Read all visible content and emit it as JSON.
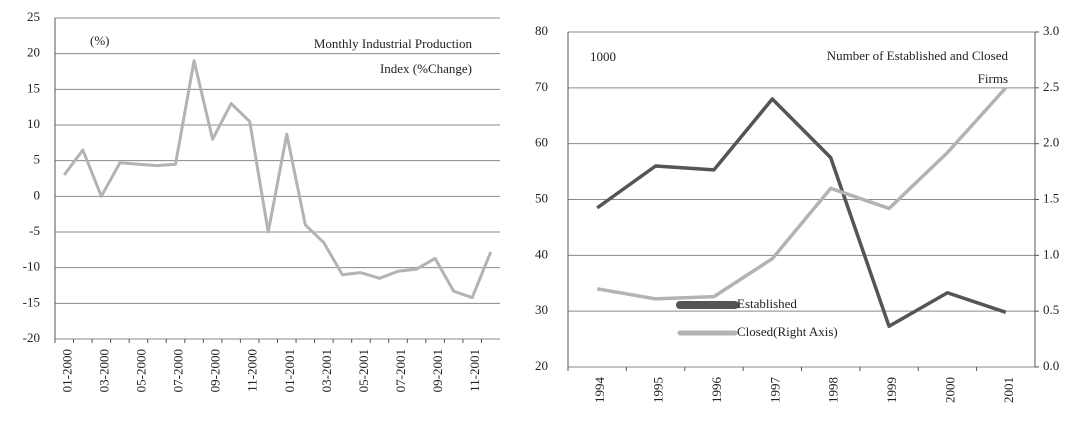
{
  "chart_data": [
    {
      "type": "line",
      "title": [
        "Monthly Industrial Production",
        "Index (%Change)"
      ],
      "annotations": [
        "(%)"
      ],
      "categories": [
        "01-2000",
        null,
        "03-2000",
        null,
        "05-2000",
        null,
        "07-2000",
        null,
        "09-2000",
        null,
        "11-2000",
        null,
        "01-2001",
        null,
        "03-2001",
        null,
        "05-2001",
        null,
        "07-2001",
        null,
        "09-2001",
        null,
        "11-2001",
        null
      ],
      "series": [
        {
          "name": "Monthly Industrial Production Index",
          "color": "#b3b3b3",
          "values": [
            3,
            6.5,
            0,
            4.7,
            4.5,
            4.3,
            4.5,
            19,
            8,
            13,
            10.5,
            -5,
            8.7,
            -4,
            -6.5,
            -11,
            -10.7,
            -11.5,
            -10.5,
            -10.2,
            -8.7,
            -13.3,
            -14.2,
            -7.8
          ]
        }
      ],
      "ylim": [
        -20,
        25
      ],
      "yticks": [
        -20,
        -15,
        -10,
        -5,
        0,
        5,
        10,
        15,
        20,
        25
      ],
      "grid": true
    },
    {
      "type": "line",
      "title": [
        "Number of  Established and Closed",
        "Firms"
      ],
      "annotations": [
        "1000"
      ],
      "categories": [
        "1994",
        "1995",
        "1996",
        "1997",
        "1998",
        "1999",
        "2000",
        "2001"
      ],
      "series": [
        {
          "name": "Established",
          "color": "#555555",
          "values": [
            48.5,
            56,
            55.3,
            68,
            57.5,
            27.3,
            33.3,
            29.8
          ]
        },
        {
          "name": "Closed(Right Axis)",
          "color": "#b3b3b3",
          "axis": "y2",
          "values": [
            0.7,
            0.61,
            0.63,
            0.97,
            1.6,
            1.42,
            1.92,
            2.5
          ]
        }
      ],
      "ylim": [
        20,
        80
      ],
      "yticks": [
        20,
        30,
        40,
        50,
        60,
        70,
        80
      ],
      "y2lim": [
        0,
        3
      ],
      "y2ticks": [
        {
          "value": 0,
          "label": "0.0"
        },
        0.5,
        {
          "value": 1,
          "label": "1.0"
        },
        1.5,
        {
          "value": 2,
          "label": "2.0"
        },
        2.5,
        {
          "value": 3,
          "label": "3.0"
        }
      ],
      "grid": true,
      "legend": "lower left"
    }
  ]
}
